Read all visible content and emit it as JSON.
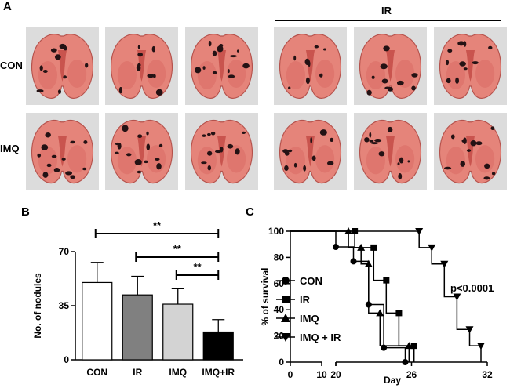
{
  "figure": {
    "panel_labels": {
      "a": "A",
      "b": "B",
      "c": "C"
    },
    "row_labels": [
      "CON",
      "IMQ"
    ],
    "ir_group_label": "IR",
    "photo_subject": "lung-photo"
  },
  "chart_data": [
    {
      "type": "bar",
      "panel": "B",
      "categories": [
        "CON",
        "IR",
        "IMQ",
        "IMQ+IR"
      ],
      "values": [
        50,
        42,
        36,
        18
      ],
      "errors": [
        13,
        12,
        10,
        8
      ],
      "bar_colors": [
        "#ffffff",
        "#808080",
        "#d3d3d3",
        "#000000"
      ],
      "ylabel": "No. of nodules",
      "xlabel": "",
      "ylim": [
        0,
        70
      ],
      "yticks": [
        0,
        35,
        70
      ],
      "significance": [
        {
          "from": "CON",
          "to": "IMQ+IR",
          "label": "**"
        },
        {
          "from": "IR",
          "to": "IMQ+IR",
          "label": "**"
        },
        {
          "from": "IMQ",
          "to": "IMQ+IR",
          "label": "**"
        }
      ]
    },
    {
      "type": "line",
      "subtype": "kaplan-meier",
      "panel": "C",
      "xlabel": "Day",
      "ylabel": "% of survival",
      "xticks": [
        0,
        10,
        20,
        26,
        32
      ],
      "yticks": [
        0,
        20,
        40,
        60,
        80,
        100
      ],
      "ylim": [
        0,
        100
      ],
      "axis_break": [
        10,
        20
      ],
      "annotation": "p<0.0001",
      "series": [
        {
          "name": "CON",
          "marker": "circle",
          "points": [
            [
              0,
              100
            ],
            [
              20,
              100
            ],
            [
              20,
              88
            ],
            [
              21.4,
              88
            ],
            [
              21.4,
              77
            ],
            [
              22.6,
              77
            ],
            [
              22.6,
              44
            ],
            [
              23.8,
              44
            ],
            [
              23.8,
              11
            ],
            [
              25.5,
              11
            ],
            [
              25.5,
              0
            ]
          ]
        },
        {
          "name": "IR",
          "marker": "square",
          "points": [
            [
              0,
              100
            ],
            [
              20,
              100
            ],
            [
              21.5,
              100
            ],
            [
              21.5,
              87.5
            ],
            [
              23,
              87.5
            ],
            [
              23,
              62.5
            ],
            [
              24,
              62.5
            ],
            [
              24,
              37.5
            ],
            [
              25,
              37.5
            ],
            [
              25,
              12.5
            ],
            [
              26.2,
              12.5
            ],
            [
              26.2,
              0
            ]
          ]
        },
        {
          "name": "IMQ",
          "marker": "triangle-up",
          "points": [
            [
              0,
              100
            ],
            [
              20,
              100
            ],
            [
              21,
              100
            ],
            [
              21,
              87.5
            ],
            [
              22,
              87.5
            ],
            [
              22,
              75
            ],
            [
              22.6,
              75
            ],
            [
              22.6,
              37.5
            ],
            [
              23.5,
              37.5
            ],
            [
              23.5,
              12.5
            ],
            [
              25.8,
              12.5
            ],
            [
              25.8,
              0
            ]
          ]
        },
        {
          "name": "IMQ  + IR",
          "marker": "triangle-down",
          "points": [
            [
              0,
              100
            ],
            [
              20,
              100
            ],
            [
              26.6,
              100
            ],
            [
              26.6,
              87.5
            ],
            [
              27.6,
              87.5
            ],
            [
              27.6,
              75
            ],
            [
              28.6,
              75
            ],
            [
              28.6,
              50
            ],
            [
              29.6,
              50
            ],
            [
              29.6,
              25
            ],
            [
              30.6,
              25
            ],
            [
              30.6,
              12.5
            ],
            [
              31.5,
              12.5
            ],
            [
              31.5,
              0
            ]
          ]
        }
      ]
    }
  ]
}
